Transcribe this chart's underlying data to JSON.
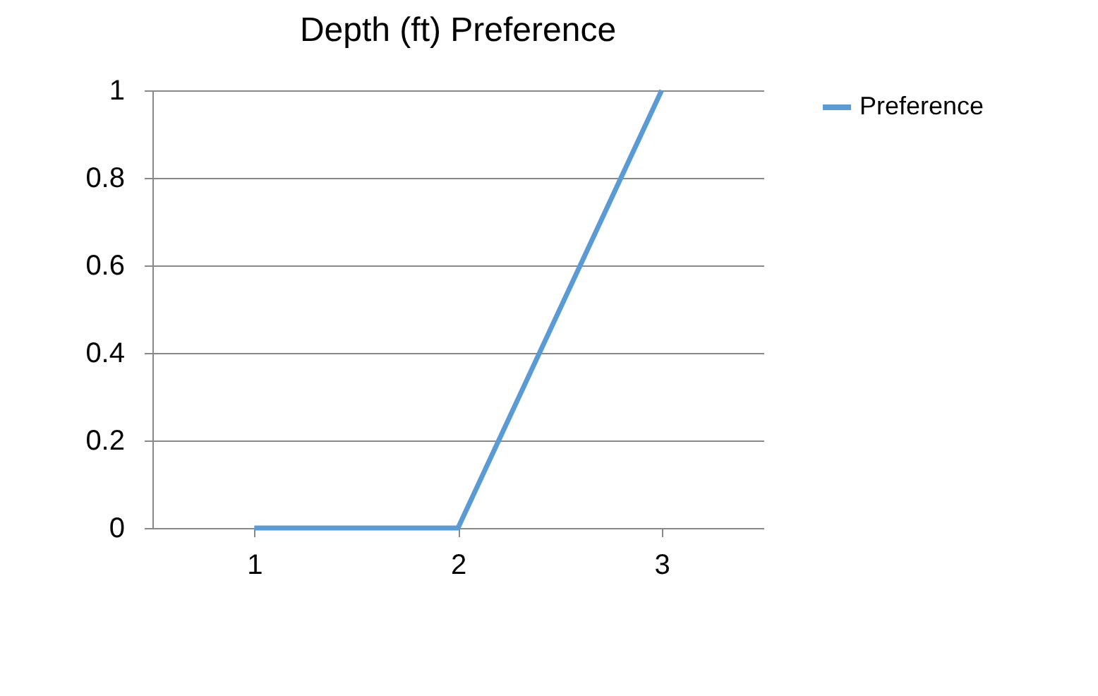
{
  "chart_data": {
    "type": "line",
    "title": "Depth (ft) Preference",
    "categories": [
      "1",
      "2",
      "3"
    ],
    "series": [
      {
        "name": "Preference",
        "color": "#5b9bd5",
        "values": [
          0,
          0,
          1
        ]
      }
    ],
    "ylim": [
      0,
      1
    ],
    "yticks": [
      0,
      0.2,
      0.4,
      0.6,
      0.8,
      1
    ],
    "grid": "y",
    "legend": "right"
  }
}
